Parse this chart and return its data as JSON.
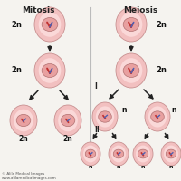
{
  "bg_color": "#f5f3ef",
  "title_mitosis": "Mitosis",
  "title_meiosis": "Meiosis",
  "watermark1": "© Alila Medical Images",
  "watermark2": "www.alilamedicalimages.com",
  "cell_outer_color": "#f2c0c0",
  "cell_inner_color": "#fad8d8",
  "nucleus_outer": "#e8a0a0",
  "nucleus_inner": "#ddd0e0",
  "chrom_red": "#c03030",
  "chrom_blue": "#5060b0",
  "arrow_color": "#222222",
  "text_color": "#222222",
  "label_bold_color": "#111111",
  "divider_color": "#bbbbbb",
  "labels": {
    "mitosis_top": "2n",
    "mitosis_mid": "2n",
    "mitosis_bot_left": "2n",
    "mitosis_bot_right": "2n",
    "meiosis_top": "2n",
    "meiosis_mid": "2n",
    "meiosis_mid_left": "n",
    "meiosis_mid_right": "n",
    "meiosis_bot1": "n",
    "meiosis_bot2": "n",
    "meiosis_bot3": "n",
    "meiosis_bot4": "n",
    "label_I": "I",
    "label_II": "II"
  }
}
